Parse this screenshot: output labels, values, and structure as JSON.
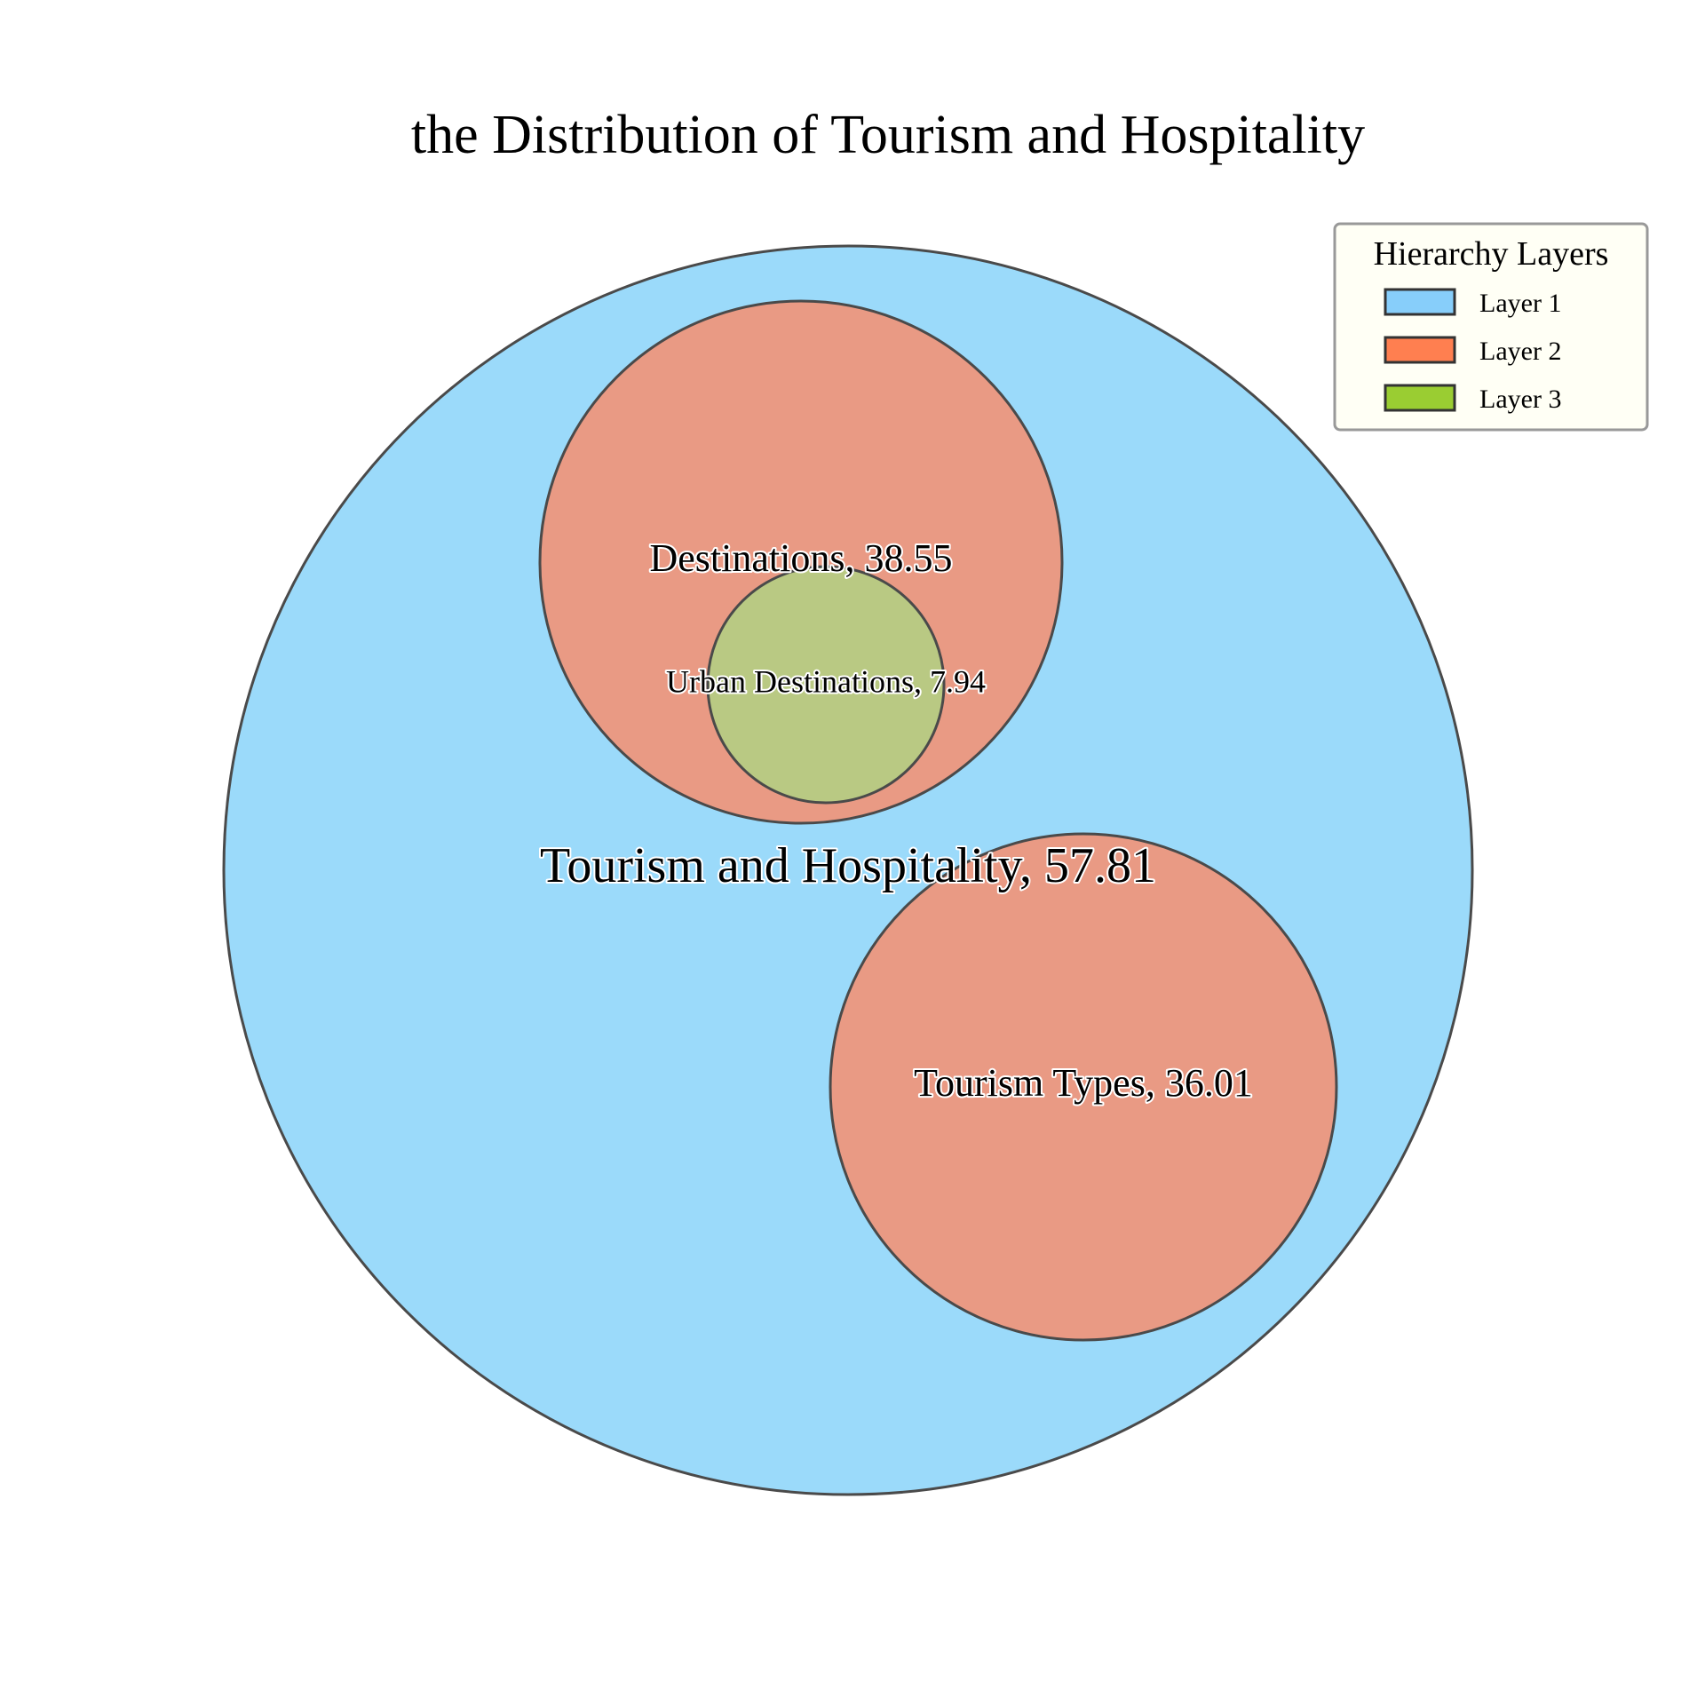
{
  "chart_data": {
    "type": "circle-packing",
    "title": "the Distribution of Tourism and Hospitality",
    "nodes": [
      {
        "name": "Tourism and Hospitality",
        "value": 57.81,
        "layer": 1,
        "label": "Tourism and Hospitality, 57.81"
      },
      {
        "name": "Destinations",
        "value": 38.55,
        "layer": 2,
        "parent": "Tourism and Hospitality",
        "label": "Destinations, 38.55"
      },
      {
        "name": "Urban Destinations",
        "value": 7.94,
        "layer": 3,
        "parent": "Destinations",
        "label": "Urban Destinations, 7.94"
      },
      {
        "name": "Tourism Types",
        "value": 36.01,
        "layer": 2,
        "parent": "Tourism and Hospitality",
        "label": "Tourism Types, 36.01"
      }
    ],
    "legend": {
      "title": "Hierarchy Layers",
      "placement": "top-right",
      "entries": [
        {
          "label": "Layer 1",
          "color": "#87CEFA"
        },
        {
          "label": "Layer 2",
          "color": "#FF7F50"
        },
        {
          "label": "Layer 3",
          "color": "#9ACD32"
        }
      ]
    },
    "fill_colors": {
      "layer1": "#9BDAFA",
      "layer2": "#E99A84",
      "layer3": "#B9C983"
    },
    "edge_color": "#4a4a4a"
  }
}
